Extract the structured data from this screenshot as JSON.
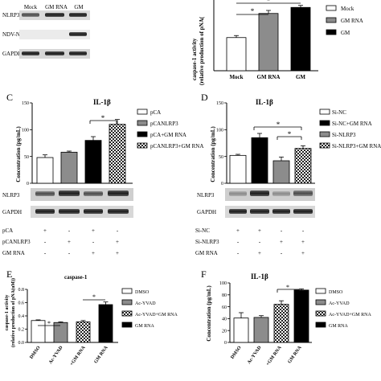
{
  "panel_a_blot": {
    "columns": [
      "Mock",
      "GM RNA",
      "GM"
    ],
    "rows": [
      "NLRP3",
      "NDV-NP",
      "GAPDH"
    ]
  },
  "panel_b_chart": {
    "ylabel_line1": "caspase-1 activity",
    "ylabel_line2": "(relative production of pNA(",
    "legend": [
      "Mock",
      "GM RNA",
      "GM"
    ],
    "sig": [
      "*",
      "*"
    ]
  },
  "panel_c": {
    "letter": "C",
    "title": "IL-1β",
    "ylabel": "Concentration (pg/mL)",
    "legend": [
      "pCA",
      "pCANLRP3",
      "pCA+GM RNA",
      "pCANLRP3+GM RNA"
    ],
    "sig": "*",
    "blot_rows": [
      "NLRP3",
      "GAPDH"
    ],
    "treat_rows": [
      {
        "label": "pCA",
        "signs": [
          "+",
          "-",
          "+",
          "-"
        ]
      },
      {
        "label": "pCANLRP3",
        "signs": [
          "-",
          "+",
          "-",
          "+"
        ]
      },
      {
        "label": "GM RNA",
        "signs": [
          "-",
          "-",
          "+",
          "+"
        ]
      }
    ]
  },
  "panel_d": {
    "letter": "D",
    "title": "IL-1β",
    "ylabel": "Concentration (pg/mL)",
    "legend": [
      "Si-NC",
      "Si-NC+GM RNA",
      "Si-NLRP3",
      "Si-NLRP3+GM RNA"
    ],
    "sig": [
      "*",
      "*"
    ],
    "blot_rows": [
      "NLRP3",
      "GAPDH"
    ],
    "treat_rows": [
      {
        "label": "Si-NC",
        "signs": [
          "+",
          "+",
          "-",
          "-"
        ]
      },
      {
        "label": "Si-NLRP3",
        "signs": [
          "-",
          "-",
          "+",
          "+"
        ]
      },
      {
        "label": "GM RNA",
        "signs": [
          "-",
          "+",
          "-",
          "+"
        ]
      }
    ]
  },
  "panel_e": {
    "letter": "E",
    "title": "caspase-1",
    "ylabel_line1": "caspase-1 activity",
    "ylabel_line2": "(relative production of pNA(uM))",
    "legend": [
      "DMSO",
      "Ac-YVAD",
      "Ac-YVAD+GM RNA",
      "GM RNA"
    ],
    "xticks": [
      "DMSO",
      "Ac-YVAD",
      "+GM RNA",
      "GM RNA"
    ],
    "sig": [
      "*",
      "*"
    ]
  },
  "panel_f": {
    "letter": "F",
    "title": "IL-1β",
    "ylabel": "Concentration (pg/mL)",
    "legend": [
      "DMSO",
      "Ac-YVAD",
      "Ac-YVAD+GM RNA",
      "GM RNA"
    ],
    "xticks": [
      "DMSO",
      "Ac-YVAD",
      "+GM RNA",
      "GM RNA"
    ],
    "sig": "*"
  },
  "chart_data": [
    {
      "panel": "B",
      "type": "bar",
      "categories": [
        "Mock",
        "GM RNA",
        "GM"
      ],
      "values": [
        0.33,
        0.57,
        0.63
      ],
      "errors": [
        0.02,
        0.03,
        0.02
      ],
      "fills": [
        "white",
        "gray",
        "black"
      ],
      "ylim": [
        0,
        0.8
      ]
    },
    {
      "panel": "C",
      "type": "bar",
      "categories": [
        "pCA",
        "pCANLRP3",
        "pCA+GM RNA",
        "pCANLRP3+GM RNA"
      ],
      "values": [
        48,
        58,
        80,
        110
      ],
      "errors": [
        5,
        2,
        7,
        9
      ],
      "fills": [
        "white",
        "gray",
        "black",
        "checker"
      ],
      "ylim": [
        0,
        150
      ],
      "yticks": [
        0,
        50,
        100,
        150
      ]
    },
    {
      "panel": "D",
      "type": "bar",
      "categories": [
        "Si-NC",
        "Si-NC+GM RNA",
        "Si-NLRP3",
        "Si-NLRP3+GM RNA"
      ],
      "values": [
        52,
        85,
        42,
        65
      ],
      "errors": [
        2,
        8,
        7,
        5
      ],
      "fills": [
        "white",
        "black",
        "gray",
        "checker"
      ],
      "ylim": [
        0,
        150
      ],
      "yticks": [
        0,
        50,
        100,
        150
      ]
    },
    {
      "panel": "E",
      "type": "bar",
      "categories": [
        "DMSO",
        "Ac-YVAD",
        "Ac-YVAD+GM RNA",
        "GM RNA"
      ],
      "values": [
        0.33,
        0.3,
        0.31,
        0.57
      ],
      "errors": [
        0.01,
        0.01,
        0.02,
        0.04
      ],
      "fills": [
        "white",
        "gray",
        "checker",
        "black"
      ],
      "ylim": [
        0,
        0.8
      ],
      "yticks": [
        0.0,
        0.2,
        0.4,
        0.6,
        0.8
      ]
    },
    {
      "panel": "F",
      "type": "bar",
      "categories": [
        "DMSO",
        "Ac-YVAD",
        "Ac-YVAD+GM RNA",
        "GM RNA"
      ],
      "values": [
        41,
        42,
        64,
        88
      ],
      "errors": [
        9,
        3,
        6,
        2
      ],
      "fills": [
        "white",
        "gray",
        "checker",
        "black"
      ],
      "ylim": [
        0,
        100
      ],
      "yticks": [
        0,
        20,
        40,
        60,
        80,
        100
      ]
    }
  ]
}
